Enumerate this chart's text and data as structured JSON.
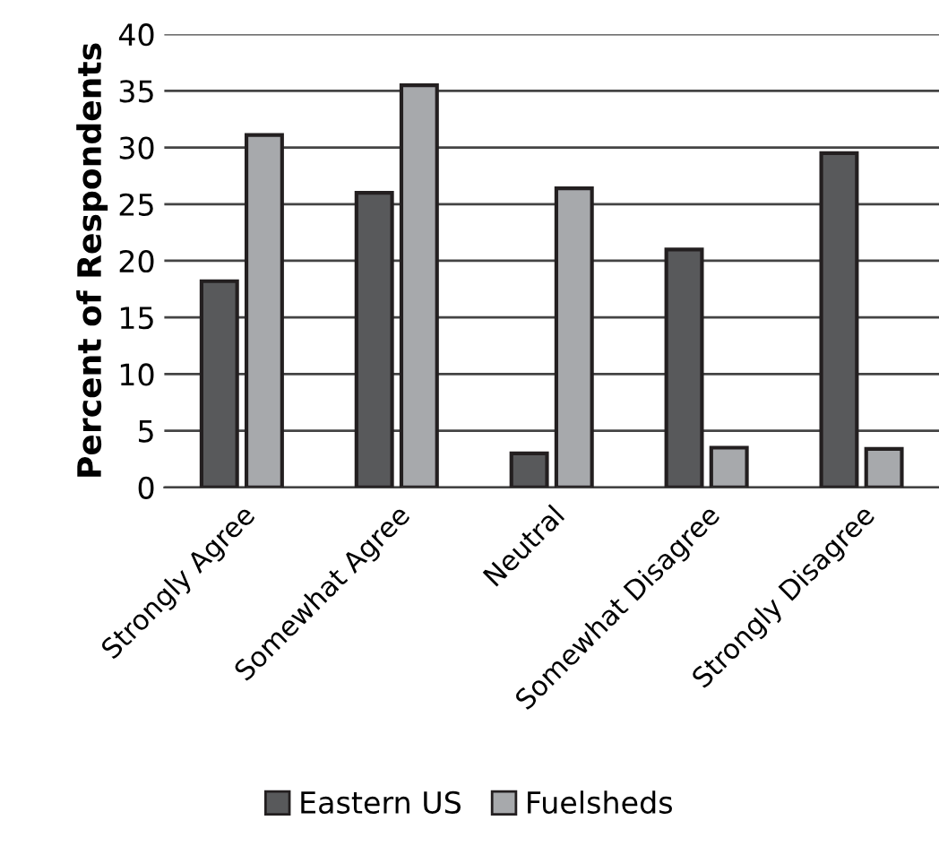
{
  "chart_data": {
    "type": "bar",
    "ylabel": "Percent of Respondents",
    "categories": [
      "Strongly Agree",
      "Somewhat Agree",
      "Neutral",
      "Somewhat Disagree",
      "Strongly Disagree"
    ],
    "series": [
      {
        "name": "Eastern US",
        "color": "#58595b",
        "values": [
          18.2,
          26.0,
          3.0,
          21.0,
          29.5
        ]
      },
      {
        "name": "Fuelsheds",
        "color": "#a7a9ac",
        "values": [
          31.1,
          35.5,
          26.4,
          3.5,
          3.4
        ]
      }
    ],
    "ylim": [
      0,
      40
    ],
    "yticks": [
      0,
      5,
      10,
      15,
      20,
      25,
      30,
      35,
      40
    ],
    "grid": "y",
    "legend": "bottom"
  }
}
